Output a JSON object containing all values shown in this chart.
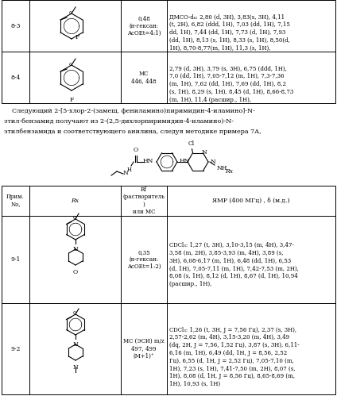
{
  "bg_color": "#ffffff",
  "top_table": {
    "row83_id": "8-3",
    "row83_rf": "0,48\n(н-гексан:\nAcOEt=4:1)",
    "row83_nmr": "ДМСО-d₆: 2,80 (d, 3H), 3,83(s, 3H), 4,11\n(t, 2H), 6,82 (ddd, 1H), 7,03 (dd, 1H), 7,15\ndd, 1H), 7,44 (dd, 1H), 7,73 (d, 1H), 7,93\n(dd, 1H), 8,13 (s, 1H), 8,33 (s, 1H), 8,50(d,\n1H), 8,70-8,77(m, 1H), 11,3 (s, 1H),",
    "row84_id": "8-4",
    "row84_rf": "МС\n446, 448",
    "row84_nmr": "2,79 (d, 3H), 3,79 (s, 3H), 6,75 (ddd, 1H),\n7,0 (dd, 1H), 7,05-7,12 (m, 1H), 7,3-7,36\n(m, 1H), 7,62 (dd, 1H), 7,69 (dd, 1H), 8,2\n(s, 1H), 8,29 (s, 1H), 8,45 (d, 1H), 8,66-8,73\n(m, 1H), 11,4 (расшир., 1H),"
  },
  "middle_text_line1": "    Следующий 2-[5-хлор-2-(замещ. фениламино)пиримидин-4-иламино]-N-",
  "middle_text_line2": "этил-бензамид получают из 2-(2,5-дихлорпиримидин-4-иламино)-N-",
  "middle_text_line3": "этилбензамида и соответствующего анилина, следуя методике примера 7А,",
  "bottom_hdr_c1": "Прим.\nNo,",
  "bottom_hdr_c2": "Rx",
  "bottom_hdr_c3": "Rf\n(растворитель\n)\nили МС",
  "bottom_hdr_c4": "ЯМР (400 МГц) , δ (м.д.)",
  "row91_id": "9-1",
  "row91_rf": "0,35\n(н-гексан:\nAcOEt=1:2)",
  "row91_nmr": "CDCl₃: 1,27 (t, 3H), 3,10-3,15 (m, 4H), 3,47-\n3,58 (m, 2H), 3,85-3,93 (m, 4H), 3,89 (s,\n3H), 6,08-6,17 (m, 1H), 6,48 (dd, 1H), 6,53\n(d, 1H), 7,05-7,11 (m, 1H), 7,42-7,53 (m, 2H),\n8,08 (s, 1H), 8,12 (d, 1H), 8,67 (d, 1H), 10,94\n(расшир., 1H),",
  "row92_id": "9-2",
  "row92_rf": "МС (ЭСИ) m/z\n497, 499\n(M+1)⁺",
  "row92_nmr": "CDCl₃: 1,26 (t, 3H, J = 7,56 Гц), 2,37 (s, 3H),\n2,57-2,62 (m, 4H), 3,15-3,20 (m, 4H), 3,49\n(dq, 2H, J = 7,56, 1,52 Гц), 3,87 (s, 3H), 6,11-\n6,16 (m, 1H), 6,49 (dd, 1H, J = 8,56, 2,52\nГц), 6,55 (d, 1H, J = 2,52 Гц), 7,05-7,10 (m,\n1H), 7,23 (s, 1H), 7,41-7,50 (m, 2H), 8,07 (s,\n1H), 8,08 (d, 1H, J = 8,56 Гц), 8,65-8,69 (m,\n1H), 10,93 (s, 1H)"
}
